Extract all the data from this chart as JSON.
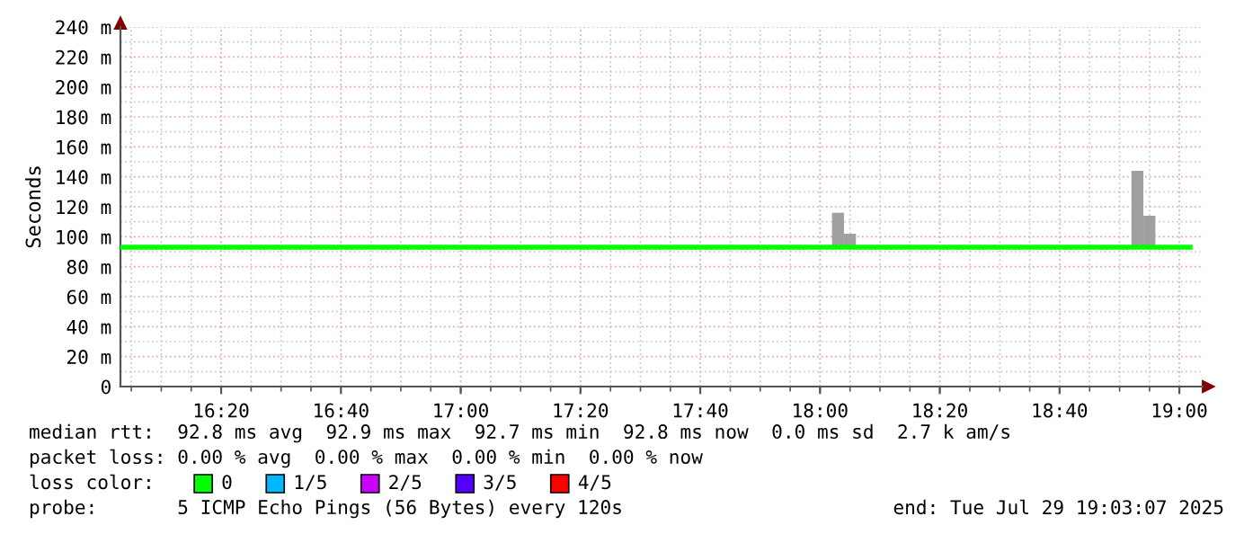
{
  "chart_data": {
    "type": "line",
    "ylabel": "Seconds",
    "xlim": [
      16.053,
      19.065
    ],
    "xticks": [
      {
        "value": 16.3333,
        "label": "16:20"
      },
      {
        "value": 16.6667,
        "label": "16:40"
      },
      {
        "value": 17,
        "label": "17:00"
      },
      {
        "value": 17.3333,
        "label": "17:20"
      },
      {
        "value": 17.6667,
        "label": "17:40"
      },
      {
        "value": 18,
        "label": "18:00"
      },
      {
        "value": 18.3333,
        "label": "18:20"
      },
      {
        "value": 18.6667,
        "label": "18:40"
      },
      {
        "value": 19,
        "label": "19:00"
      }
    ],
    "ylim": [
      0,
      240
    ],
    "yticks": [
      0,
      {
        "value": 20,
        "label": "20 m"
      },
      {
        "value": 40,
        "label": "40 m"
      },
      {
        "value": 60,
        "label": "60 m"
      },
      {
        "value": 80,
        "label": "80 m"
      },
      {
        "value": 100,
        "label": "100 m"
      },
      {
        "value": 120,
        "label": "120 m"
      },
      {
        "value": 140,
        "label": "140 m"
      },
      {
        "value": 160,
        "label": "160 m"
      },
      {
        "value": 180,
        "label": "180 m"
      },
      {
        "value": 200,
        "label": "200 m"
      },
      {
        "value": 220,
        "label": "220 m"
      },
      {
        "value": 240,
        "label": "240 m"
      }
    ],
    "grid": true,
    "legend": "bottom",
    "legend_title": "loss color:",
    "series": [
      {
        "type": "bar",
        "color": "#a0a0a0",
        "x": [
          18.05,
          18.0833,
          18.8833,
          18.9167
        ],
        "base": [
          93,
          93,
          93,
          93
        ],
        "values": [
          23,
          9,
          51,
          21
        ]
      },
      {
        "name": "0",
        "color": "#00ff00",
        "x": [
          16.053,
          19.03
        ],
        "values": [
          93,
          93
        ]
      },
      {
        "name": "1/5",
        "color": "#00b8ff"
      },
      {
        "name": "2/5",
        "color": "#cc00ff"
      },
      {
        "name": "3/5",
        "color": "#5500ff"
      },
      {
        "name": "4/5",
        "color": "#ff0000"
      }
    ],
    "annotations": [
      "median rtt:  92.8 ms avg  92.9 ms max  92.7 ms min  92.8 ms now  0.0 ms sd  2.7 k am/s",
      "packet loss: 0.00 % avg  0.00 % max  0.00 % min  0.00 % now",
      "probe:       5 ICMP Echo Pings (56 Bytes) every 120s",
      "end: Tue Jul 29 19:03:07 2025"
    ]
  }
}
